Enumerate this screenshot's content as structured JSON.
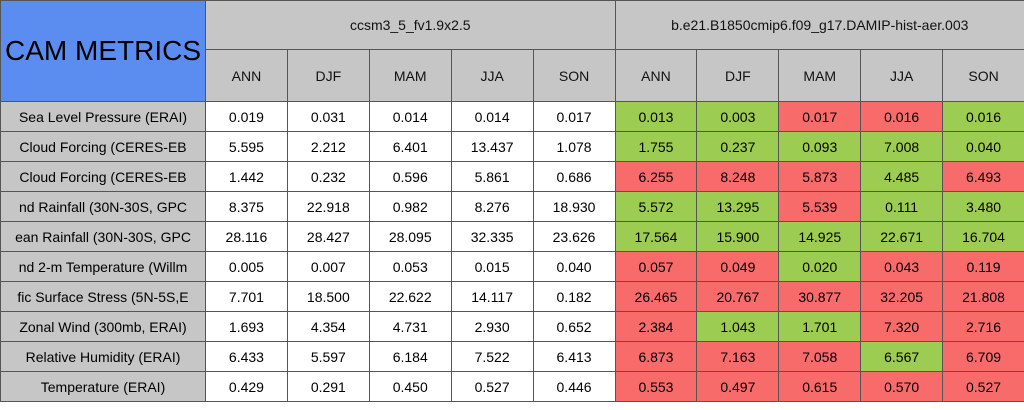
{
  "header": {
    "title": "CAM METRICS",
    "groups": [
      "ccsm3_5_fv1.9x2.5",
      "b.e21.B1850cmip6.f09_g17.DAMIP-hist-aer.003"
    ],
    "seasons": [
      "ANN",
      "DJF",
      "MAM",
      "JJA",
      "SON"
    ]
  },
  "table": {
    "rows": [
      {
        "label": "Sea Level Pressure (ERAI)",
        "a": [
          "0.019",
          "0.031",
          "0.014",
          "0.014",
          "0.017"
        ],
        "b": [
          "0.013",
          "0.003",
          "0.017",
          "0.016",
          "0.016"
        ],
        "b_colors": [
          "#9ccc52",
          "#9ccc52",
          "#f76b6b",
          "#f76b6b",
          "#9ccc52"
        ]
      },
      {
        "label": "Cloud Forcing (CERES-EB",
        "a": [
          "5.595",
          "2.212",
          "6.401",
          "13.437",
          "1.078"
        ],
        "b": [
          "1.755",
          "0.237",
          "0.093",
          "7.008",
          "0.040"
        ],
        "b_colors": [
          "#9ccc52",
          "#9ccc52",
          "#9ccc52",
          "#9ccc52",
          "#9ccc52"
        ]
      },
      {
        "label": "Cloud Forcing (CERES-EB",
        "a": [
          "1.442",
          "0.232",
          "0.596",
          "5.861",
          "0.686"
        ],
        "b": [
          "6.255",
          "8.248",
          "5.873",
          "4.485",
          "6.493"
        ],
        "b_colors": [
          "#f76b6b",
          "#f76b6b",
          "#f76b6b",
          "#9ccc52",
          "#f76b6b"
        ]
      },
      {
        "label": "nd Rainfall (30N-30S, GPC",
        "a": [
          "8.375",
          "22.918",
          "0.982",
          "8.276",
          "18.930"
        ],
        "b": [
          "5.572",
          "13.295",
          "5.539",
          "0.111",
          "3.480"
        ],
        "b_colors": [
          "#9ccc52",
          "#9ccc52",
          "#f76b6b",
          "#9ccc52",
          "#9ccc52"
        ]
      },
      {
        "label": "ean Rainfall (30N-30S, GPC",
        "a": [
          "28.116",
          "28.427",
          "28.095",
          "32.335",
          "23.626"
        ],
        "b": [
          "17.564",
          "15.900",
          "14.925",
          "22.671",
          "16.704"
        ],
        "b_colors": [
          "#9ccc52",
          "#9ccc52",
          "#9ccc52",
          "#9ccc52",
          "#9ccc52"
        ]
      },
      {
        "label": "nd 2-m Temperature (Willm",
        "a": [
          "0.005",
          "0.007",
          "0.053",
          "0.015",
          "0.040"
        ],
        "b": [
          "0.057",
          "0.049",
          "0.020",
          "0.043",
          "0.119"
        ],
        "b_colors": [
          "#f76b6b",
          "#f76b6b",
          "#9ccc52",
          "#f76b6b",
          "#f76b6b"
        ]
      },
      {
        "label": "fic Surface Stress (5N-5S,E",
        "a": [
          "7.701",
          "18.500",
          "22.622",
          "14.117",
          "0.182"
        ],
        "b": [
          "26.465",
          "20.767",
          "30.877",
          "32.205",
          "21.808"
        ],
        "b_colors": [
          "#f76b6b",
          "#f76b6b",
          "#f76b6b",
          "#f76b6b",
          "#f76b6b"
        ]
      },
      {
        "label": "Zonal Wind (300mb, ERAI)",
        "a": [
          "1.693",
          "4.354",
          "4.731",
          "2.930",
          "0.652"
        ],
        "b": [
          "2.384",
          "1.043",
          "1.701",
          "7.320",
          "2.716"
        ],
        "b_colors": [
          "#f76b6b",
          "#9ccc52",
          "#9ccc52",
          "#f76b6b",
          "#f76b6b"
        ]
      },
      {
        "label": "Relative Humidity (ERAI)",
        "a": [
          "6.433",
          "5.597",
          "6.184",
          "7.522",
          "6.413"
        ],
        "b": [
          "6.873",
          "7.163",
          "7.058",
          "6.567",
          "6.709"
        ],
        "b_colors": [
          "#f76b6b",
          "#f76b6b",
          "#f76b6b",
          "#9ccc52",
          "#f76b6b"
        ]
      },
      {
        "label": "Temperature (ERAI)",
        "a": [
          "0.429",
          "0.291",
          "0.450",
          "0.527",
          "0.446"
        ],
        "b": [
          "0.553",
          "0.497",
          "0.615",
          "0.570",
          "0.527"
        ],
        "b_colors": [
          "#f76b6b",
          "#f76b6b",
          "#f76b6b",
          "#f76b6b",
          "#f76b6b"
        ]
      }
    ]
  }
}
